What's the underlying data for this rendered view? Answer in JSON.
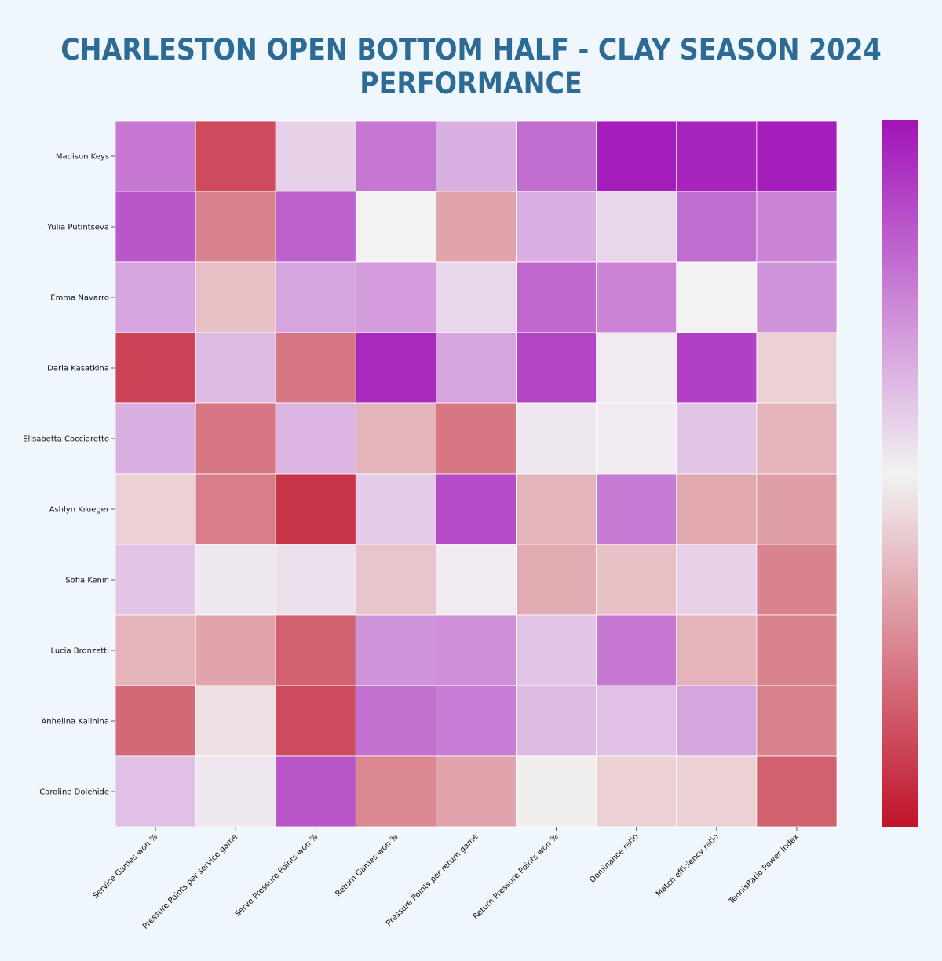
{
  "chart_data": {
    "type": "heatmap",
    "title": "CHARLESTON OPEN BOTTOM HALF - CLAY SEASON 2024 PERFORMANCE",
    "rows": [
      "Madison Keys",
      "Yulia Putintseva",
      "Emma Navarro",
      "Daria Kasatkina",
      "Elisabetta Cocciaretto",
      "Ashlyn Krueger",
      "Sofia Kenin",
      "Lucia Bronzetti",
      "Anhelina Kalinina",
      "Caroline Dolehide"
    ],
    "columns": [
      "Service Games won %",
      "Pressure Points per service game",
      "Serve Pressure Points won %",
      "Return Games won %",
      "Pressure Points per return game",
      "Return Pressure Points won %",
      "Dominance ratio",
      "Match efficiency ratio",
      "TennisRatio Power Index"
    ],
    "values": [
      [
        0.55,
        -0.75,
        0.15,
        0.55,
        0.3,
        0.6,
        0.95,
        0.92,
        0.95
      ],
      [
        0.7,
        -0.5,
        0.65,
        0.0,
        -0.35,
        0.3,
        0.12,
        0.6,
        0.5
      ],
      [
        0.35,
        -0.22,
        0.35,
        0.38,
        0.12,
        0.62,
        0.5,
        0.0,
        0.42
      ],
      [
        -0.78,
        0.25,
        -0.55,
        0.9,
        0.35,
        0.78,
        0.03,
        0.8,
        -0.15
      ],
      [
        0.3,
        -0.55,
        0.28,
        -0.28,
        -0.55,
        0.05,
        0.03,
        0.2,
        -0.28
      ],
      [
        -0.15,
        -0.52,
        -0.85,
        0.17,
        0.75,
        -0.28,
        0.53,
        -0.33,
        -0.38
      ],
      [
        0.2,
        0.05,
        0.08,
        -0.2,
        0.03,
        -0.32,
        -0.22,
        0.15,
        -0.5
      ],
      [
        -0.28,
        -0.35,
        -0.65,
        0.42,
        0.45,
        0.2,
        0.55,
        -0.28,
        -0.5
      ],
      [
        -0.62,
        -0.08,
        -0.75,
        0.58,
        0.52,
        0.25,
        0.22,
        0.35,
        -0.5
      ],
      [
        0.22,
        0.05,
        0.7,
        -0.48,
        -0.35,
        -0.02,
        -0.15,
        -0.15,
        -0.65
      ]
    ],
    "value_range": [
      -1,
      1
    ],
    "colorbar": {
      "low_color": "#c0132a",
      "mid_color": "#f2f2f2",
      "high_color": "#a113b8",
      "tick_labels": []
    },
    "grid": true,
    "legend": "right"
  },
  "colors": {
    "background": "#eff7fd",
    "title": "#2d6b97",
    "cell_border": "#ffffff"
  }
}
